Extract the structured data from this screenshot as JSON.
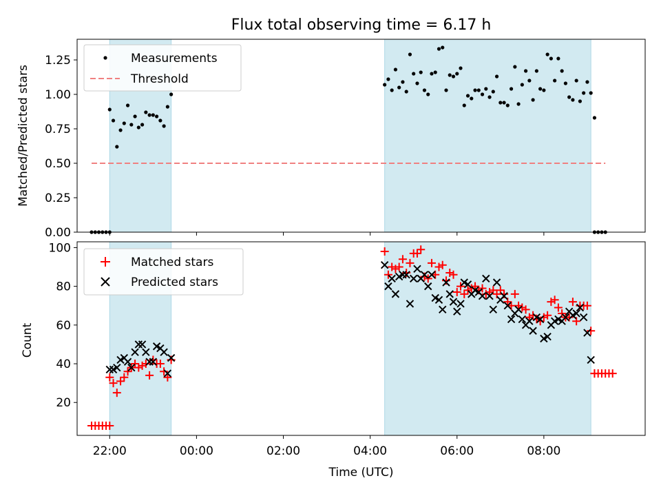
{
  "chart_data": [
    {
      "type": "scatter",
      "title": "Flux total observing time = 6.17 h",
      "ylabel": "Matched/Predicted stars",
      "xlim": [
        "21:15",
        "10:20"
      ],
      "ylim": [
        0,
        1.4
      ],
      "yticks": [
        "0.00",
        "0.25",
        "0.50",
        "0.75",
        "1.00",
        "1.25"
      ],
      "legend_position": "upper-left",
      "legend": [
        "Measurements",
        "Threshold"
      ],
      "shaded_spans": [
        [
          "22:00",
          "23:25"
        ],
        [
          "04:20",
          "09:05"
        ]
      ],
      "threshold": {
        "name": "Threshold",
        "value": 0.5,
        "x_start": "21:35",
        "x_end": "09:25",
        "color": "#f08080",
        "style": "dashed"
      },
      "series": [
        {
          "name": "Measurements",
          "marker": "dot",
          "color": "#000000",
          "points": [
            [
              "21:35",
              0
            ],
            [
              "21:40",
              0
            ],
            [
              "21:45",
              0
            ],
            [
              "21:50",
              0
            ],
            [
              "21:55",
              0
            ],
            [
              "22:00",
              0
            ],
            [
              "22:00",
              0.89
            ],
            [
              "22:05",
              0.81
            ],
            [
              "22:10",
              0.62
            ],
            [
              "22:15",
              0.74
            ],
            [
              "22:20",
              0.79
            ],
            [
              "22:25",
              0.92
            ],
            [
              "22:30",
              0.78
            ],
            [
              "22:35",
              0.84
            ],
            [
              "22:40",
              0.76
            ],
            [
              "22:45",
              0.78
            ],
            [
              "22:50",
              0.87
            ],
            [
              "22:55",
              0.85
            ],
            [
              "23:00",
              0.85
            ],
            [
              "23:05",
              0.84
            ],
            [
              "23:10",
              0.81
            ],
            [
              "23:15",
              0.77
            ],
            [
              "23:20",
              0.91
            ],
            [
              "23:25",
              1.0
            ],
            [
              "04:20",
              1.07
            ],
            [
              "04:25",
              1.11
            ],
            [
              "04:30",
              1.03
            ],
            [
              "04:35",
              1.18
            ],
            [
              "04:40",
              1.05
            ],
            [
              "04:45",
              1.09
            ],
            [
              "04:50",
              1.02
            ],
            [
              "04:55",
              1.29
            ],
            [
              "05:00",
              1.15
            ],
            [
              "05:05",
              1.08
            ],
            [
              "05:10",
              1.16
            ],
            [
              "05:15",
              1.03
            ],
            [
              "05:20",
              1.0
            ],
            [
              "05:25",
              1.15
            ],
            [
              "05:30",
              1.16
            ],
            [
              "05:35",
              1.33
            ],
            [
              "05:40",
              1.34
            ],
            [
              "05:45",
              1.03
            ],
            [
              "05:50",
              1.14
            ],
            [
              "05:55",
              1.13
            ],
            [
              "06:00",
              1.15
            ],
            [
              "06:05",
              1.19
            ],
            [
              "06:10",
              0.92
            ],
            [
              "06:15",
              0.99
            ],
            [
              "06:20",
              0.97
            ],
            [
              "06:25",
              1.03
            ],
            [
              "06:30",
              1.03
            ],
            [
              "06:35",
              1.0
            ],
            [
              "06:40",
              1.04
            ],
            [
              "06:45",
              0.98
            ],
            [
              "06:50",
              1.02
            ],
            [
              "06:55",
              1.13
            ],
            [
              "07:00",
              0.94
            ],
            [
              "07:05",
              0.94
            ],
            [
              "07:10",
              0.92
            ],
            [
              "07:15",
              1.04
            ],
            [
              "07:20",
              1.2
            ],
            [
              "07:25",
              0.93
            ],
            [
              "07:30",
              1.07
            ],
            [
              "07:35",
              1.17
            ],
            [
              "07:40",
              1.1
            ],
            [
              "07:45",
              0.96
            ],
            [
              "07:50",
              1.17
            ],
            [
              "07:55",
              1.04
            ],
            [
              "08:00",
              1.03
            ],
            [
              "08:05",
              1.29
            ],
            [
              "08:10",
              1.26
            ],
            [
              "08:15",
              1.1
            ],
            [
              "08:20",
              1.26
            ],
            [
              "08:25",
              1.17
            ],
            [
              "08:30",
              1.08
            ],
            [
              "08:35",
              0.98
            ],
            [
              "08:40",
              0.96
            ],
            [
              "08:45",
              1.1
            ],
            [
              "08:50",
              0.95
            ],
            [
              "08:55",
              1.01
            ],
            [
              "09:00",
              1.09
            ],
            [
              "09:05",
              1.01
            ],
            [
              "09:10",
              0.83
            ],
            [
              "09:10",
              0
            ],
            [
              "09:15",
              0
            ],
            [
              "09:20",
              0
            ],
            [
              "09:25",
              0
            ]
          ]
        }
      ]
    },
    {
      "type": "scatter",
      "xlabel": "Time (UTC)",
      "ylabel": "Count",
      "xlim": [
        "21:15",
        "10:20"
      ],
      "ylim": [
        3,
        103
      ],
      "xticks": [
        "22:00",
        "00:00",
        "02:00",
        "04:00",
        "06:00",
        "08:00"
      ],
      "yticks": [
        "20",
        "40",
        "60",
        "80",
        "100"
      ],
      "legend_position": "upper-left",
      "legend": [
        "Matched stars",
        "Predicted stars"
      ],
      "shaded_spans": [
        [
          "22:00",
          "23:25"
        ],
        [
          "04:20",
          "09:05"
        ]
      ],
      "series": [
        {
          "name": "Matched stars",
          "marker": "plus",
          "color": "#ff0000",
          "points": [
            [
              "21:35",
              8
            ],
            [
              "21:40",
              8
            ],
            [
              "21:45",
              8
            ],
            [
              "21:50",
              8
            ],
            [
              "21:55",
              8
            ],
            [
              "22:00",
              8
            ],
            [
              "22:00",
              33
            ],
            [
              "22:05",
              30
            ],
            [
              "22:10",
              25
            ],
            [
              "22:15",
              31
            ],
            [
              "22:20",
              33
            ],
            [
              "22:25",
              36
            ],
            [
              "22:30",
              38
            ],
            [
              "22:35",
              40
            ],
            [
              "22:40",
              38
            ],
            [
              "22:45",
              39
            ],
            [
              "22:50",
              40
            ],
            [
              "22:55",
              34
            ],
            [
              "23:00",
              42
            ],
            [
              "23:05",
              40
            ],
            [
              "23:10",
              40
            ],
            [
              "23:15",
              36
            ],
            [
              "23:20",
              33
            ],
            [
              "23:25",
              42
            ],
            [
              "04:20",
              98
            ],
            [
              "04:25",
              86
            ],
            [
              "04:30",
              90
            ],
            [
              "04:35",
              89
            ],
            [
              "04:40",
              90
            ],
            [
              "04:45",
              94
            ],
            [
              "04:50",
              87
            ],
            [
              "04:55",
              92
            ],
            [
              "05:00",
              97
            ],
            [
              "05:05",
              97
            ],
            [
              "05:10",
              99
            ],
            [
              "05:15",
              85
            ],
            [
              "05:20",
              84
            ],
            [
              "05:25",
              92
            ],
            [
              "05:30",
              86
            ],
            [
              "05:35",
              90
            ],
            [
              "05:40",
              91
            ],
            [
              "05:45",
              83
            ],
            [
              "05:50",
              87
            ],
            [
              "05:55",
              86
            ],
            [
              "06:00",
              77
            ],
            [
              "06:05",
              80
            ],
            [
              "06:10",
              76
            ],
            [
              "06:15",
              78
            ],
            [
              "06:20",
              79
            ],
            [
              "06:25",
              80
            ],
            [
              "06:30",
              78
            ],
            [
              "06:35",
              79
            ],
            [
              "06:40",
              76
            ],
            [
              "06:45",
              77
            ],
            [
              "06:50",
              78
            ],
            [
              "06:55",
              76
            ],
            [
              "07:00",
              78
            ],
            [
              "07:05",
              76
            ],
            [
              "07:10",
              72
            ],
            [
              "07:15",
              70
            ],
            [
              "07:20",
              76
            ],
            [
              "07:25",
              70
            ],
            [
              "07:30",
              69
            ],
            [
              "07:35",
              68
            ],
            [
              "07:40",
              64
            ],
            [
              "07:45",
              65
            ],
            [
              "07:50",
              63
            ],
            [
              "07:55",
              62
            ],
            [
              "08:00",
              64
            ],
            [
              "08:05",
              65
            ],
            [
              "08:10",
              72
            ],
            [
              "08:15",
              73
            ],
            [
              "08:20",
              69
            ],
            [
              "08:25",
              66
            ],
            [
              "08:30",
              64
            ],
            [
              "08:35",
              64
            ],
            [
              "08:40",
              72
            ],
            [
              "08:45",
              62
            ],
            [
              "08:50",
              70
            ],
            [
              "08:55",
              70
            ],
            [
              "09:00",
              70
            ],
            [
              "09:05",
              57
            ],
            [
              "09:10",
              35
            ],
            [
              "09:10",
              35
            ],
            [
              "09:15",
              35
            ],
            [
              "09:20",
              35
            ],
            [
              "09:25",
              35
            ],
            [
              "09:30",
              35
            ],
            [
              "09:35",
              35
            ]
          ]
        },
        {
          "name": "Predicted stars",
          "marker": "x",
          "color": "#000000",
          "points": [
            [
              "22:00",
              37
            ],
            [
              "22:05",
              37
            ],
            [
              "22:10",
              38
            ],
            [
              "22:15",
              42
            ],
            [
              "22:20",
              43
            ],
            [
              "22:25",
              41
            ],
            [
              "22:30",
              38
            ],
            [
              "22:35",
              46
            ],
            [
              "22:40",
              50
            ],
            [
              "22:45",
              50
            ],
            [
              "22:50",
              46
            ],
            [
              "22:55",
              41
            ],
            [
              "23:00",
              41
            ],
            [
              "23:05",
              49
            ],
            [
              "23:10",
              48
            ],
            [
              "23:15",
              46
            ],
            [
              "23:20",
              35
            ],
            [
              "23:25",
              43
            ],
            [
              "04:20",
              91
            ],
            [
              "04:25",
              80
            ],
            [
              "04:30",
              84
            ],
            [
              "04:35",
              76
            ],
            [
              "04:40",
              85
            ],
            [
              "04:45",
              86
            ],
            [
              "04:50",
              86
            ],
            [
              "04:55",
              71
            ],
            [
              "05:00",
              84
            ],
            [
              "05:05",
              89
            ],
            [
              "05:10",
              84
            ],
            [
              "05:15",
              86
            ],
            [
              "05:20",
              80
            ],
            [
              "05:25",
              86
            ],
            [
              "05:30",
              74
            ],
            [
              "05:35",
              73
            ],
            [
              "05:40",
              68
            ],
            [
              "05:45",
              82
            ],
            [
              "05:50",
              76
            ],
            [
              "05:55",
              72
            ],
            [
              "06:00",
              67
            ],
            [
              "06:05",
              71
            ],
            [
              "06:10",
              82
            ],
            [
              "06:15",
              81
            ],
            [
              "06:20",
              76
            ],
            [
              "06:25",
              78
            ],
            [
              "06:30",
              77
            ],
            [
              "06:35",
              75
            ],
            [
              "06:40",
              84
            ],
            [
              "06:45",
              75
            ],
            [
              "06:50",
              68
            ],
            [
              "06:55",
              82
            ],
            [
              "07:00",
              73
            ],
            [
              "07:05",
              75
            ],
            [
              "07:10",
              70
            ],
            [
              "07:15",
              63
            ],
            [
              "07:20",
              66
            ],
            [
              "07:25",
              68
            ],
            [
              "07:30",
              63
            ],
            [
              "07:35",
              60
            ],
            [
              "07:40",
              62
            ],
            [
              "07:45",
              57
            ],
            [
              "07:50",
              64
            ],
            [
              "07:55",
              63
            ],
            [
              "08:00",
              53
            ],
            [
              "08:05",
              54
            ],
            [
              "08:10",
              60
            ],
            [
              "08:15",
              62
            ],
            [
              "08:20",
              63
            ],
            [
              "08:25",
              62
            ],
            [
              "08:30",
              64
            ],
            [
              "08:35",
              67
            ],
            [
              "08:40",
              65
            ],
            [
              "08:45",
              66
            ],
            [
              "08:50",
              69
            ],
            [
              "08:55",
              64
            ],
            [
              "09:00",
              56
            ],
            [
              "09:05",
              42
            ]
          ]
        }
      ]
    }
  ],
  "colors": {
    "shade": "#add8e6",
    "threshold": "#f08080",
    "matched": "#ff0000",
    "predicted": "#000000",
    "measurement": "#000000"
  }
}
